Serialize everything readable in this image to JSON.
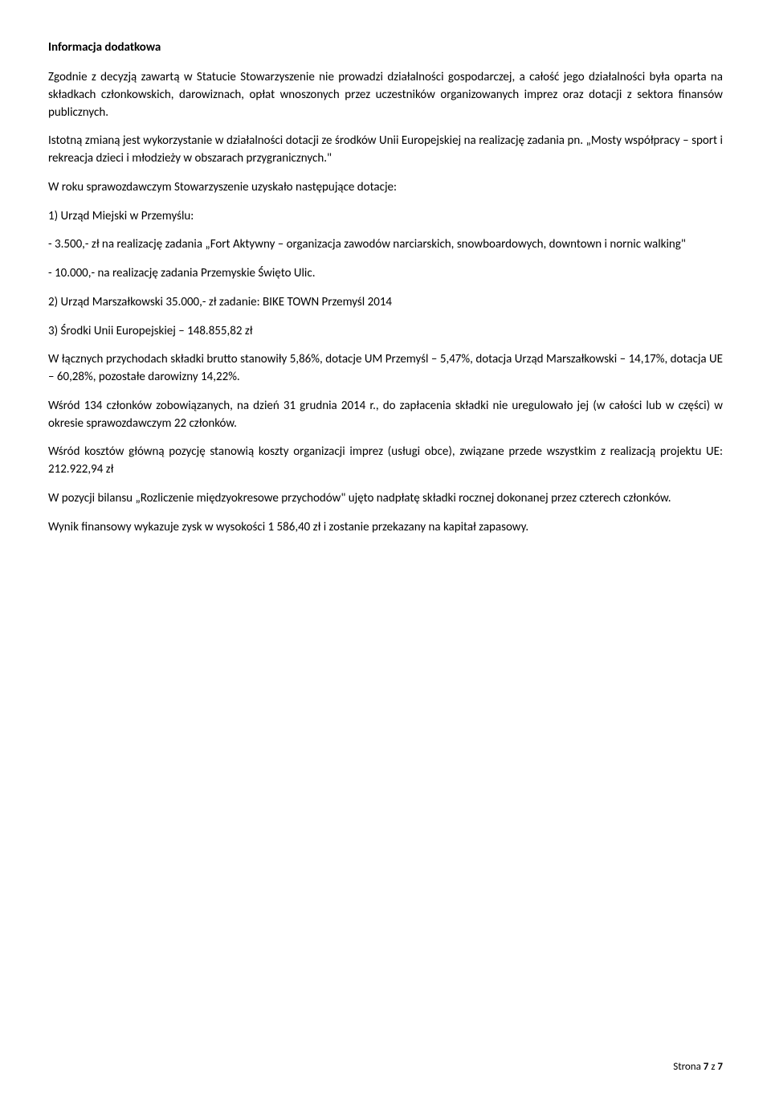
{
  "title": "Informacja dodatkowa",
  "p1": "Zgodnie z decyzją zawartą w Statucie Stowarzyszenie nie prowadzi działalności gospodarczej, a całość jego działalności była oparta na składkach członkowskich, darowiznach, opłat wnoszonych przez uczestników organizowanych imprez oraz dotacji z sektora finansów publicznych.",
  "p2": "Istotną zmianą jest wykorzystanie w działalności dotacji ze środków Unii Europejskiej na realizację zadania pn. „Mosty współpracy – sport i rekreacja dzieci i młodzieży w obszarach przygranicznych.\"",
  "p3": "W roku sprawozdawczym Stowarzyszenie uzyskało następujące dotacje:",
  "li1": "1) Urząd Miejski w Przemyślu:",
  "li2": "- 3.500,- zł na realizację zadania „Fort Aktywny – organizacja zawodów narciarskich, snowboardowych, downtown i nornic walking\"",
  "li3": "- 10.000,- na realizację zadania Przemyskie Święto Ulic.",
  "li4": "2) Urząd Marszałkowski 35.000,- zł zadanie: BIKE TOWN Przemyśl 2014",
  "li5": "3) Środki Unii Europejskiej – 148.855,82 zł",
  "p4": "W łącznych przychodach składki brutto stanowiły 5,86%, dotacje UM Przemyśl – 5,47%, dotacja Urząd Marszałkowski – 14,17%, dotacja UE – 60,28%, pozostałe darowizny 14,22%.",
  "p5": "Wśród 134 członków zobowiązanych, na dzień 31 grudnia 2014 r., do zapłacenia składki nie uregulowało jej (w całości lub w części) w okresie sprawozdawczym 22 członków.",
  "p6": "Wśród kosztów główną pozycję stanowią koszty organizacji imprez (usługi obce), związane przede wszystkim z realizacją projektu UE: 212.922,94 zł",
  "p7": "W pozycji bilansu „Rozliczenie międzyokresowe przychodów\" ujęto nadpłatę składki rocznej dokonanej przez czterech członków.",
  "p8": "Wynik finansowy wykazuje zysk w wysokości 1 586,40 zł i zostanie przekazany na kapitał zapasowy.",
  "footer": {
    "prefix": "Strona ",
    "current": "7",
    "sep": " z ",
    "total": "7"
  }
}
